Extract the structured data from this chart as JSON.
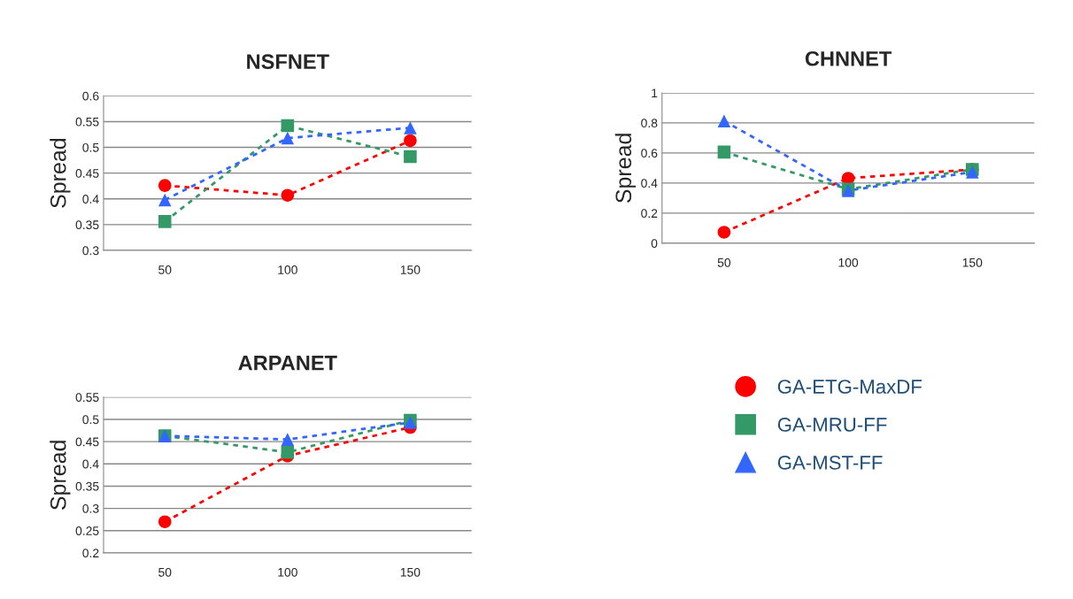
{
  "chart_data": [
    {
      "type": "line",
      "title": "NSFNET",
      "ylabel": "Spread",
      "categories": [
        "50",
        "100",
        "150"
      ],
      "ylim": [
        0.3,
        0.6
      ],
      "yticks": [
        0.3,
        0.35,
        0.4,
        0.45,
        0.5,
        0.55,
        0.6
      ],
      "grid": "y",
      "legend": false,
      "line_style": "dotted",
      "series": [
        {
          "color": "#ff0000",
          "marker": "circle",
          "values": [
            0.426,
            0.407,
            0.513
          ]
        },
        {
          "color": "#339966",
          "marker": "square",
          "values": [
            0.356,
            0.542,
            0.482
          ]
        },
        {
          "color": "#3366ff",
          "marker": "triangle",
          "values": [
            0.398,
            0.518,
            0.538
          ]
        }
      ]
    },
    {
      "type": "line",
      "title": "CHNNET",
      "ylabel": "Spread",
      "categories": [
        "50",
        "100",
        "150"
      ],
      "ylim": [
        0,
        1
      ],
      "yticks": [
        0,
        0.2,
        0.4,
        0.6,
        0.8,
        1
      ],
      "grid": "y",
      "legend": false,
      "line_style": "dotted",
      "series": [
        {
          "color": "#ff0000",
          "marker": "circle",
          "values": [
            0.073,
            0.432,
            0.49
          ]
        },
        {
          "color": "#339966",
          "marker": "square",
          "values": [
            0.606,
            0.359,
            0.491
          ]
        },
        {
          "color": "#3366ff",
          "marker": "triangle",
          "values": [
            0.813,
            0.35,
            0.473
          ]
        }
      ]
    },
    {
      "type": "line",
      "title": "ARPANET",
      "ylabel": "Spread",
      "categories": [
        "50",
        "100",
        "150"
      ],
      "ylim": [
        0.2,
        0.55
      ],
      "yticks": [
        0.2,
        0.25,
        0.3,
        0.35,
        0.4,
        0.45,
        0.5,
        0.55
      ],
      "grid": "y",
      "legend": "right",
      "line_style": "dotted",
      "series": [
        {
          "name": "GA-ETG-MaxDF",
          "color": "#ff0000",
          "marker": "circle",
          "values": [
            0.27,
            0.418,
            0.482
          ]
        },
        {
          "name": "GA-MRU-FF",
          "color": "#339966",
          "marker": "square",
          "values": [
            0.463,
            0.426,
            0.498
          ]
        },
        {
          "name": "GA-MST-FF",
          "color": "#3366ff",
          "marker": "triangle",
          "values": [
            0.463,
            0.455,
            0.493
          ]
        }
      ]
    }
  ]
}
